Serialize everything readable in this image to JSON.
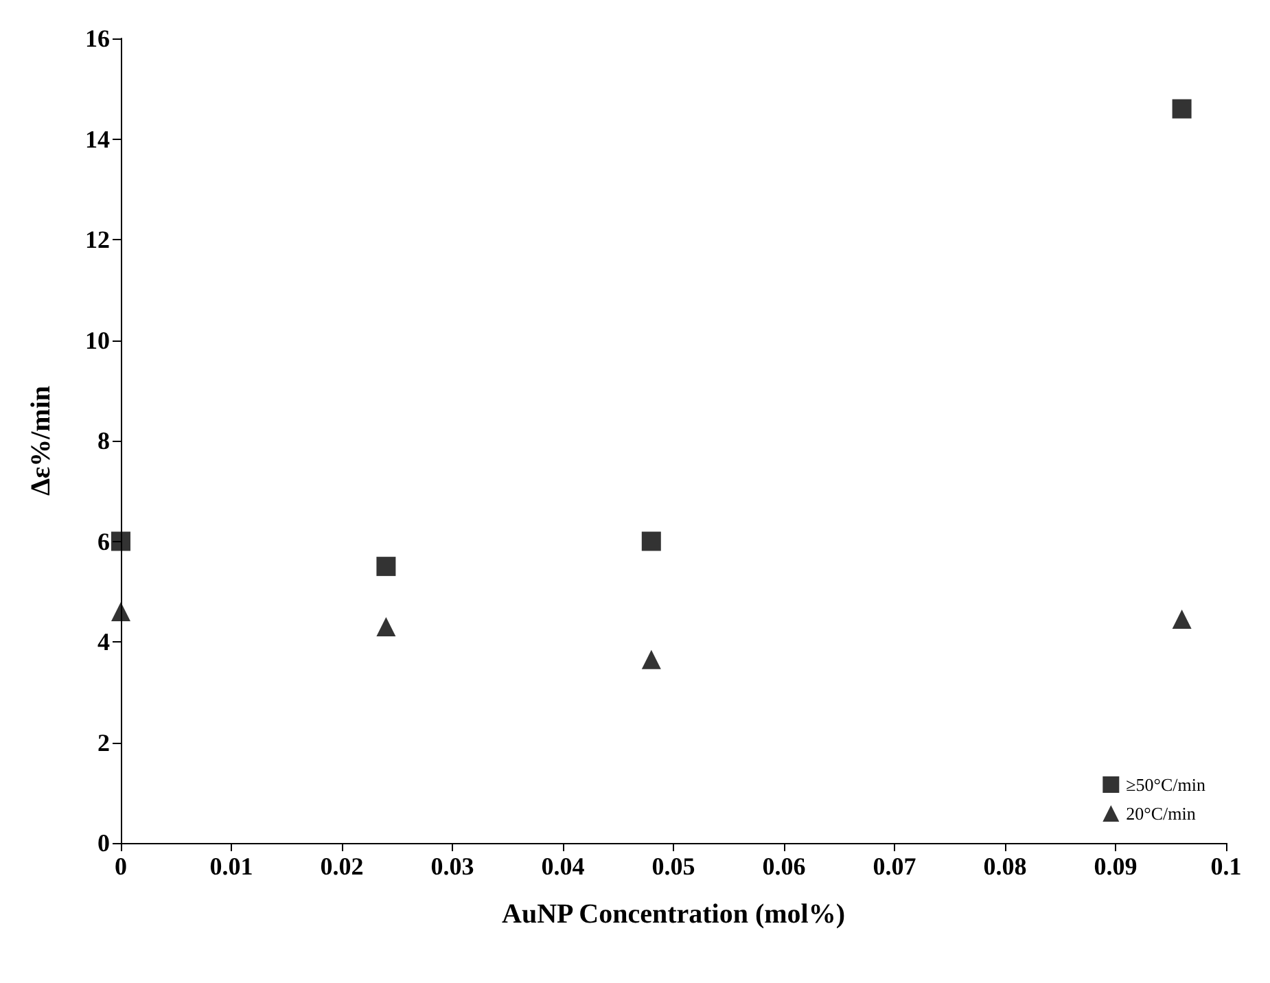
{
  "chart_data": {
    "type": "scatter",
    "xlabel": "AuNP Concentration (mol%)",
    "ylabel": "Δε%/min",
    "x": [
      0,
      0.024,
      0.048,
      0.096
    ],
    "series": [
      {
        "name": "≥50°C/min",
        "color": "#000000",
        "marker": "square",
        "values": [
          6.0,
          5.5,
          6.0,
          14.6
        ]
      },
      {
        "name": "20°C/min",
        "color": "#000000",
        "marker": "triangle",
        "values": [
          4.6,
          4.3,
          3.65,
          4.45
        ]
      }
    ],
    "xlim": [
      0,
      0.1
    ],
    "xticks": [
      0,
      0.01,
      0.02,
      0.03,
      0.04,
      0.05,
      0.06,
      0.07,
      0.08,
      0.09,
      0.1
    ],
    "ylim": [
      0,
      16
    ],
    "yticks": [
      0,
      2,
      4,
      6,
      8,
      10,
      12,
      14,
      16
    ],
    "grid": false,
    "legend": "bottom right"
  }
}
